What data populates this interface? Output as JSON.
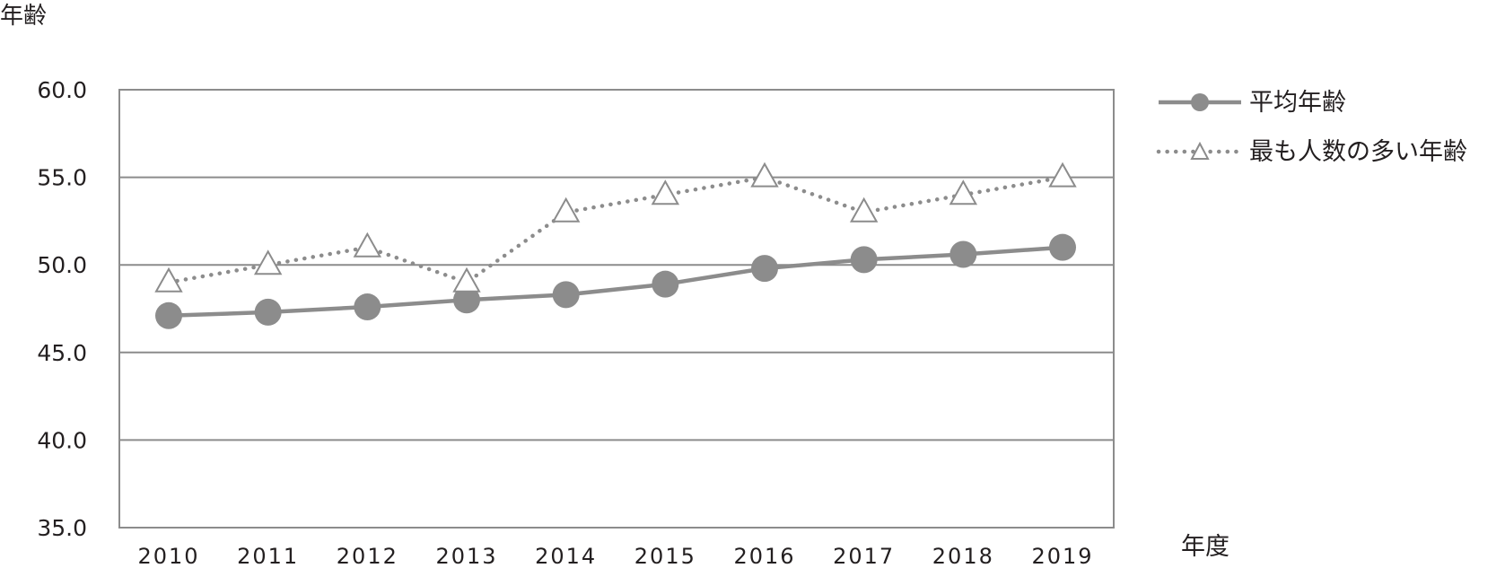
{
  "chart_data": {
    "type": "line",
    "ylabel": "年齢",
    "xlabel": "年度",
    "ylim": [
      35.0,
      60.0
    ],
    "yticks": [
      "35.0",
      "40.0",
      "45.0",
      "50.0",
      "55.0",
      "60.0"
    ],
    "x": [
      "2010",
      "2011",
      "2012",
      "2013",
      "2014",
      "2015",
      "2016",
      "2017",
      "2018",
      "2019"
    ],
    "grid": true,
    "legend_position": "right",
    "series": [
      {
        "name": "平均年齢",
        "style": "solid",
        "marker": "circle",
        "color": "#8c8c8c",
        "values": [
          47.1,
          47.3,
          47.6,
          48.0,
          48.3,
          48.9,
          49.8,
          50.3,
          50.6,
          51.0
        ]
      },
      {
        "name": "最も人数の多い年齢",
        "style": "dotted",
        "marker": "triangle",
        "color": "#8c8c8c",
        "values": [
          49,
          50,
          51,
          49,
          53,
          54,
          55,
          53,
          54,
          55
        ]
      }
    ]
  }
}
